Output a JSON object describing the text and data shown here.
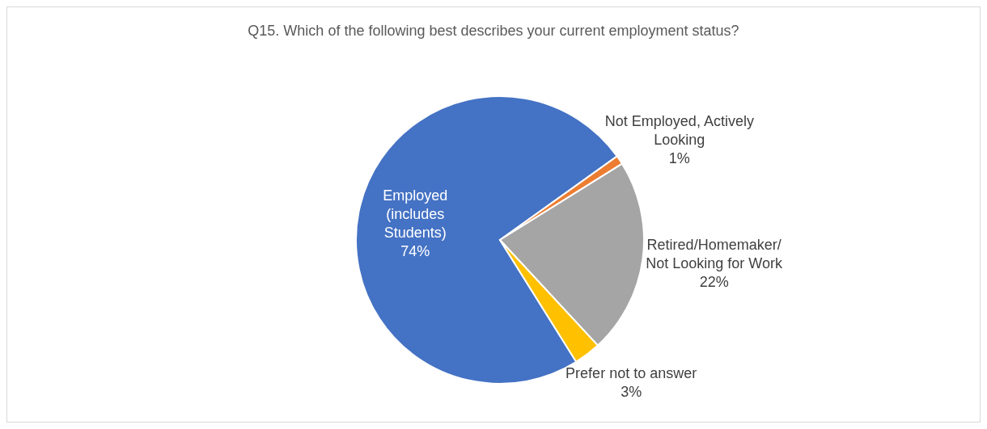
{
  "chart_data": {
    "type": "pie",
    "title": "Q15. Which of the following best describes your current employment status?",
    "categories": [
      "Employed\n(includes\nStudents)",
      "Not Employed, Actively\nLooking",
      "Retired/Homemaker/\nNot Looking for Work",
      "Prefer not to answer"
    ],
    "values": [
      74,
      1,
      22,
      3
    ],
    "colors": [
      "#4472c4",
      "#ed7d31",
      "#a5a5a5",
      "#ffc000"
    ],
    "value_labels": [
      "74%",
      "1%",
      "22%",
      "3%"
    ],
    "legend": false
  }
}
